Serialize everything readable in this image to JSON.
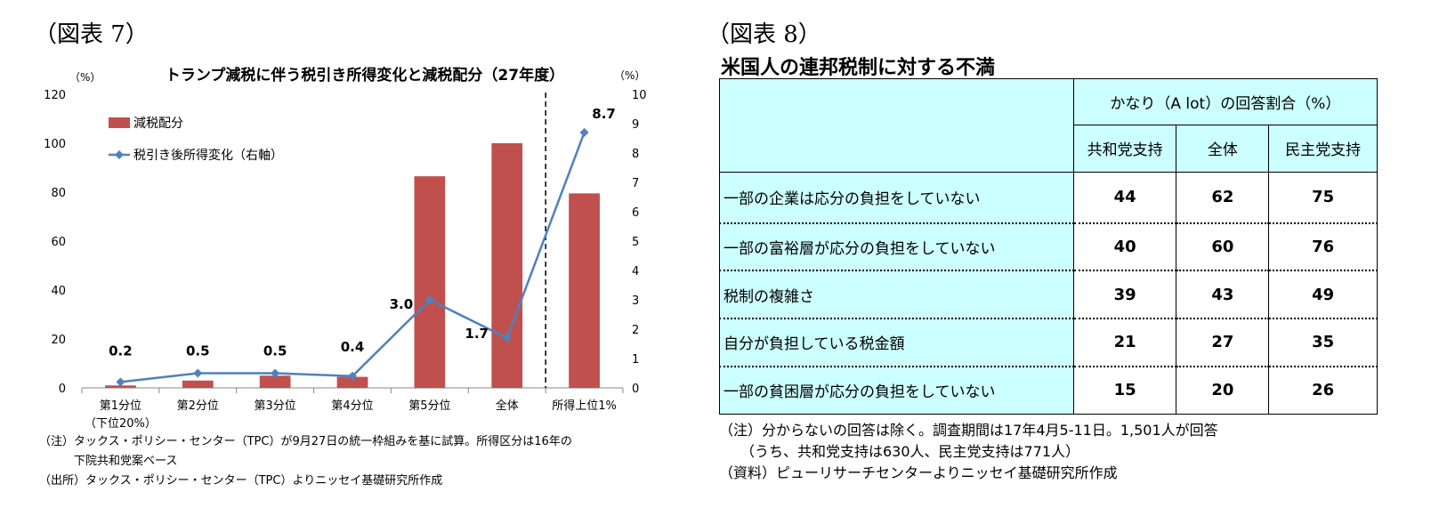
{
  "left": {
    "fig_label": "（図表 7）",
    "chart_data": {
      "type": "bar",
      "title": "トランプ減税に伴う税引き所得変化と減税配分（27年度）",
      "ylabel_left": "（%）",
      "ylabel_right": "（%）",
      "categories": [
        "第1分位",
        "第2分位",
        "第3分位",
        "第4分位",
        "第5分位",
        "全体",
        "所得上位1%"
      ],
      "category_sublabels": [
        "（下位20%）",
        "",
        "",
        "",
        "",
        "",
        ""
      ],
      "series": [
        {
          "name": "減税配分",
          "type": "bar",
          "axis": "left",
          "values": [
            1,
            3,
            5,
            4.5,
            86.5,
            100,
            79.5
          ]
        },
        {
          "name": "税引き後所得変化（右軸）",
          "type": "line",
          "axis": "right",
          "values": [
            0.2,
            0.5,
            0.5,
            0.4,
            3.0,
            1.7,
            8.7
          ]
        }
      ],
      "line_labels": [
        "0.2",
        "0.5",
        "0.5",
        "0.4",
        "3.0",
        "1.7",
        "8.7"
      ],
      "ylim_left": [
        0,
        120
      ],
      "yticks_left": [
        "0",
        "20",
        "40",
        "60",
        "80",
        "100",
        "120"
      ],
      "ylim_right": [
        0,
        10
      ],
      "yticks_right": [
        "0",
        "1",
        "2",
        "3",
        "4",
        "5",
        "6",
        "7",
        "8",
        "9",
        "10"
      ],
      "legend_position": "top-left",
      "dashed_separator_before": "所得上位1%",
      "colors": {
        "bar": "#c0504d",
        "line": "#4f81bd"
      }
    },
    "notes": [
      "（注）タックス・ポリシー・センター（TPC）が9月27日の統一枠組みを基に試算。所得区分は16年の",
      "　　　下院共和党案ベース",
      "（出所）タックス・ポリシー・センター（TPC）よりニッセイ基礎研究所作成"
    ]
  },
  "right": {
    "fig_label": "（図表 8）",
    "title": "米国人の連邦税制に対する不満",
    "table": {
      "group_header": "かなり（A lot）の回答割合（%）",
      "columns": [
        "共和党支持",
        "全体",
        "民主党支持"
      ],
      "rows": [
        {
          "label": "一部の企業は応分の負担をしていない",
          "values": [
            "44",
            "62",
            "75"
          ]
        },
        {
          "label": "一部の富裕層が応分の負担をしていない",
          "values": [
            "40",
            "60",
            "76"
          ]
        },
        {
          "label": "税制の複雑さ",
          "values": [
            "39",
            "43",
            "49"
          ]
        },
        {
          "label": "自分が負担している税金額",
          "values": [
            "21",
            "27",
            "35"
          ]
        },
        {
          "label": "一部の貧困層が応分の負担をしていない",
          "values": [
            "15",
            "20",
            "26"
          ]
        }
      ]
    },
    "notes": [
      "（注）分からないの回答は除く。調査期間は17年4月5‐11日。1,501人が回答",
      "　　（うち、共和党支持は630人、民主党支持は771人）",
      "（資料）ピューリサーチセンターよりニッセイ基礎研究所作成"
    ]
  }
}
